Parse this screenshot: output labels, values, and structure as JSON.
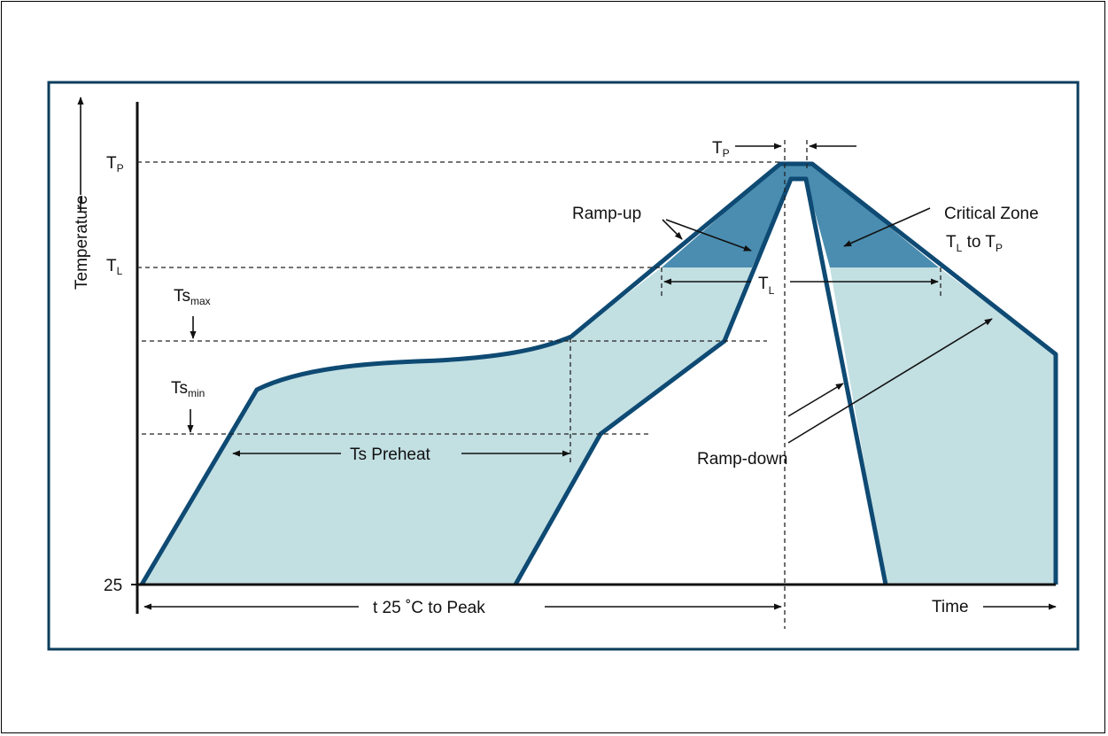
{
  "axes": {
    "y_label": "Temperature",
    "x_label": "Time",
    "y_origin": "25"
  },
  "y_levels": {
    "tp": {
      "main": "T",
      "sub": "P"
    },
    "tl": {
      "main": "T",
      "sub": "L"
    },
    "ts_max": {
      "main": "Ts",
      "sub": "max"
    },
    "ts_min": {
      "main": "Ts",
      "sub": "min"
    }
  },
  "annotations": {
    "peak_time": {
      "main": "T",
      "sub": "P"
    },
    "liquidus_time": {
      "main": "T",
      "sub": "L"
    },
    "ramp_up": "Ramp-up",
    "ramp_down": "Ramp-down",
    "critical_zone_title": "Critical Zone",
    "critical_zone_range": {
      "a": "T",
      "a_sub": "L",
      "mid": " to ",
      "b": "T",
      "b_sub": "P"
    },
    "preheat": "Ts Preheat",
    "time_to_peak": "t 25 ˚C to Peak"
  },
  "colors": {
    "frame": "#0b3d5c",
    "curve": "#0e4a73",
    "light_fill": "#c2dfe2",
    "critical_fill": "#4a8db0"
  }
}
